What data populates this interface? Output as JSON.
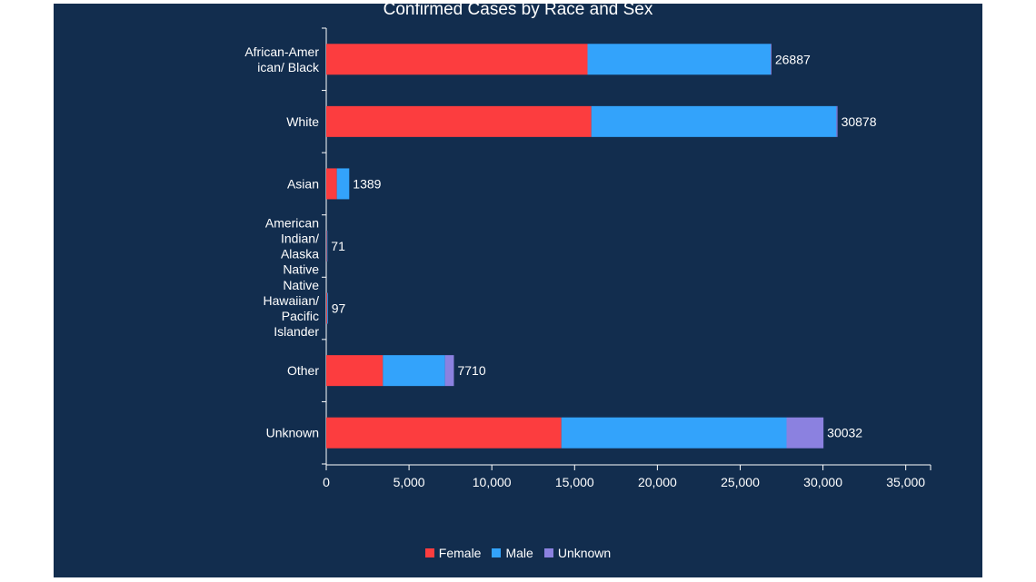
{
  "chart_data": {
    "type": "bar",
    "orientation": "horizontal",
    "stacked": true,
    "title": "Confirmed Cases by Race and Sex",
    "categories": [
      [
        "African-Amer",
        "ican/ Black"
      ],
      [
        "White"
      ],
      [
        "Asian"
      ],
      [
        "American",
        "Indian/",
        "Alaska",
        "Native"
      ],
      [
        "Native",
        "Hawaiian/",
        "Pacific",
        "Islander"
      ],
      [
        "Other"
      ],
      [
        "Unknown"
      ]
    ],
    "series": [
      {
        "name": "Female",
        "color": "#fc3d3f",
        "values": [
          15780,
          16010,
          640,
          35,
          50,
          3420,
          14200
        ]
      },
      {
        "name": "Male",
        "color": "#33a3fb",
        "values": [
          11060,
          14800,
          749,
          36,
          47,
          3750,
          13600
        ]
      },
      {
        "name": "Unknown",
        "color": "#8b81e0",
        "values": [
          47,
          68,
          0,
          0,
          0,
          540,
          2232
        ]
      }
    ],
    "totals": [
      "26887",
      "30878",
      "1389",
      "71",
      "97",
      "7710",
      "30032"
    ],
    "xlim": [
      0,
      36500
    ],
    "xticks": [
      0,
      5000,
      10000,
      15000,
      20000,
      25000,
      30000,
      35000
    ],
    "xtick_labels": [
      "0",
      "5,000",
      "10,000",
      "15,000",
      "20,000",
      "25,000",
      "30,000",
      "35,000"
    ],
    "xlabel": "",
    "ylabel": "",
    "grid": false,
    "legend": "bottom-center"
  }
}
